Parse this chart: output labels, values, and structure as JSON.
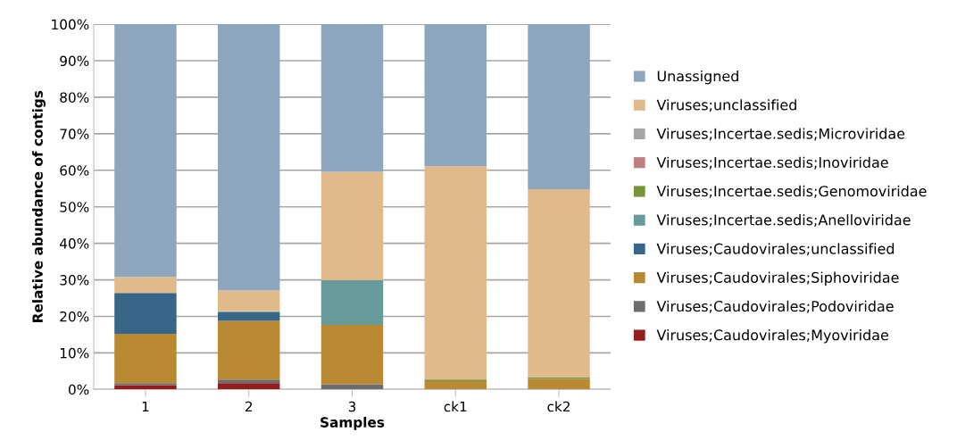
{
  "chart_data": {
    "type": "bar",
    "stacked": true,
    "xlabel": "Samples",
    "ylabel": "Relative abundance of contigs",
    "categories": [
      "1",
      "2",
      "3",
      "ck1",
      "ck2"
    ],
    "series": [
      {
        "name": "Viruses;Caudovirales;Myoviridae",
        "color": "#941c1f",
        "values": [
          1.2,
          1.7,
          0,
          0,
          0
        ]
      },
      {
        "name": "Viruses;Caudovirales;Podoviridae",
        "color": "#6c6c6c",
        "values": [
          0.5,
          1.0,
          1.4,
          0,
          0
        ]
      },
      {
        "name": "Viruses;Caudovirales;Siphoviridae",
        "color": "#ba8a32",
        "values": [
          13.5,
          16.1,
          16.3,
          2.3,
          2.9
        ]
      },
      {
        "name": "Viruses;Caudovirales;unclassified",
        "color": "#376688",
        "values": [
          11.2,
          2.4,
          0,
          0,
          0
        ]
      },
      {
        "name": "Viruses;Incertae.sedis;Anelloviridae",
        "color": "#679a9a",
        "values": [
          0,
          0.2,
          12.2,
          0,
          0
        ]
      },
      {
        "name": "Viruses;Incertae.sedis;Genomoviridae",
        "color": "#77933c",
        "values": [
          0,
          0,
          0,
          0.4,
          0.4
        ]
      },
      {
        "name": "Viruses;Incertae.sedis;Inoviridae",
        "color": "#c0807f",
        "values": [
          0,
          0,
          0,
          0,
          0
        ]
      },
      {
        "name": "Viruses;Incertae.sedis;Microviridae",
        "color": "#a5a5a5",
        "values": [
          0,
          0,
          0,
          0,
          0
        ]
      },
      {
        "name": "Viruses;unclassified",
        "color": "#e0ba8b",
        "values": [
          4.4,
          5.7,
          29.7,
          58.4,
          51.5
        ]
      },
      {
        "name": "Unassigned",
        "color": "#8ea5be",
        "values": [
          69.2,
          72.9,
          40.4,
          38.9,
          45.2
        ]
      }
    ],
    "ylim": [
      0,
      100
    ],
    "yticks": [
      {
        "value": 0,
        "label": "0%"
      },
      {
        "value": 10,
        "label": "10%"
      },
      {
        "value": 20,
        "label": "20%"
      },
      {
        "value": 30,
        "label": "30%"
      },
      {
        "value": 40,
        "label": "40%"
      },
      {
        "value": 50,
        "label": "50%"
      },
      {
        "value": 60,
        "label": "60%"
      },
      {
        "value": 70,
        "label": "70%"
      },
      {
        "value": 80,
        "label": "80%"
      },
      {
        "value": 90,
        "label": "90%"
      },
      {
        "value": 100,
        "label": "100%"
      }
    ],
    "grid": "y",
    "legend": "right"
  }
}
